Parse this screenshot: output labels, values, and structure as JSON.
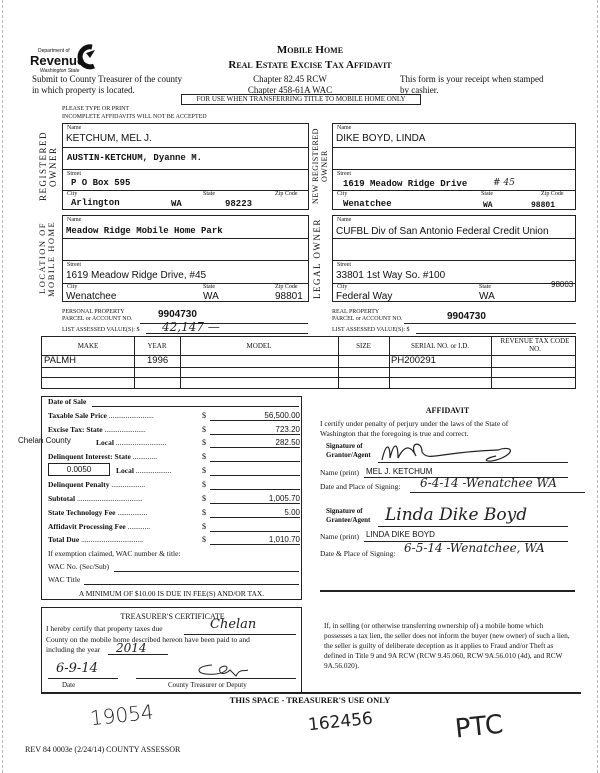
{
  "header": {
    "agency_line1": "Department of",
    "agency_line2": "Revenue",
    "agency_line3": "Washington State",
    "title1": "Mobile Home",
    "title2": "Real Estate Excise Tax Affidavit",
    "submit1": "Submit to County Treasurer of the county",
    "submit2": "in which property is located.",
    "chapter1": "Chapter 82.45 RCW",
    "chapter2": "Chapter 458-61A WAC",
    "receipt1": "This form is your receipt when stamped",
    "receipt2": "by cashier.",
    "banner": "FOR USE WHEN TRANSFERRING TITLE TO MOBILE HOME ONLY",
    "instr1": "PLEASE TYPE OR PRINT",
    "instr2": "INCOMPLETE AFFIDAVITS WILL NOT BE ACCEPTED"
  },
  "labels": {
    "name": "Name",
    "street": "Street",
    "city": "City",
    "state": "State",
    "zip": "Zip Code"
  },
  "registered_owner": {
    "section": "REGISTERED OWNER",
    "name1": "KETCHUM, MEL J.",
    "name2": "AUSTIN-KETCHUM, Dyanne M.",
    "street": "P O Box 595",
    "city": "Arlington",
    "state": "WA",
    "zip": "98223"
  },
  "new_owner": {
    "section": "NEW REGISTERED OWNER",
    "name1": "DIKE BOYD, LINDA",
    "name2": "",
    "street": "1619 Meadow Ridge Drive",
    "unit": "# 45",
    "city": "Wenatchee",
    "state": "WA",
    "zip": "98801"
  },
  "location": {
    "section": "LOCATION OF MOBILE HOME",
    "name1": "Meadow Ridge Mobile Home Park",
    "street": "1619 Meadow Ridge Drive, #45",
    "city": "Wenatchee",
    "state": "WA",
    "zip": "98801"
  },
  "legal_owner": {
    "section": "LEGAL OWNER",
    "name1": "CUFBL Div of San Antonio Federal Credit Union",
    "street": "33801 1st Way So. #100",
    "city": "Federal Way",
    "state": "WA",
    "zip": "98003"
  },
  "parcel": {
    "pp_label1": "PERSONAL PROPERTY",
    "pp_label2": "PARCEL or ACCOUNT NO.",
    "pp_value": "9904730",
    "rp_label1": "REAL PROPERTY",
    "rp_label2": "PARCEL or ACCOUNT NO.",
    "rp_value": "9904730",
    "assessed_label": "LIST ASSESSED VALUE(S): $",
    "pp_assessed": "42,147 —",
    "rp_assessed": ""
  },
  "table": {
    "headers": [
      "MAKE",
      "YEAR",
      "MODEL",
      "SIZE",
      "SERIAL NO. or I.D.",
      "REVENUE TAX CODE NO."
    ],
    "rows": [
      [
        "PALMH",
        "1996",
        "",
        "",
        "PH200291",
        ""
      ],
      [
        "",
        "",
        "",
        "",
        "",
        ""
      ],
      [
        "",
        "",
        "",
        "",
        "",
        ""
      ]
    ]
  },
  "tax": {
    "date_of_sale": "Date of Sale",
    "taxable": "Taxable Sale Price",
    "taxable_v": "56,500.00",
    "excise": "Excise Tax:   State",
    "excise_v": "723.20",
    "county": "Chelan County",
    "local": "Local",
    "local_v": "282.50",
    "delinq": "Delinquent Interest:  State",
    "rate": "0.0050",
    "delinq_local": "Local",
    "penalty": "Delinquent Penalty",
    "subtotal": "Subtotal",
    "subtotal_v": "1,005.70",
    "tech": "State Technology Fee",
    "tech_v": "5.00",
    "affidavit_fee": "Affidavit Processing Fee",
    "total": "Total Due",
    "total_v": "1,010.70",
    "exempt": "If exemption claimed, WAC number & title:",
    "wac_no": "WAC No. (Sec/Sub)",
    "wac_title": "WAC Title",
    "minimum": "A MINIMUM OF $10.00 IS DUE IN FEE(S) AND/OR TAX.",
    "dollar": "$"
  },
  "affidavit": {
    "title": "AFFIDAVIT",
    "cert1": "I certify under penalty of perjury under the laws of the State of",
    "cert2": "Washington that the foregoing is true and correct.",
    "sig_grantor1": "Signature of",
    "sig_grantor2": "Grantor/Agent",
    "name_print": "Name (print)",
    "grantor_name": "MEL J. KETCHUM",
    "date_place": "Date and Place of Signing:",
    "grantor_date": "6-4-14  -Wenatchee WA",
    "sig_grantee1": "Signature of",
    "sig_grantee2": "Grantee/Agent",
    "grantee_sig": "Linda Dike Boyd",
    "grantee_name": "LINDA DIKE BOYD",
    "date_place2": "Date & Place of Signing:",
    "grantee_date": "6-5-14 -Wenatchee, WA"
  },
  "treasurer": {
    "title": "TREASURER'S CERTIFICATE",
    "line1": "I hereby certify that property taxes due",
    "county": "Chelan",
    "line2": "County on the mobile home described hereon have been paid to and",
    "line3": "including the year",
    "year": "2014",
    "date": "6-9-14",
    "date_label": "Date",
    "deputy_label": "County Treasurer or Deputy"
  },
  "notice": "If, in selling (or otherwise transferring ownership of) a mobile home which possesses a tax lien, the seller does not inform the buyer (new owner) of such a lien, the seller is guilty of deliberate deception as it applies to Fraud and/or Theft as defined in Title 9 and 9A RCW (RCW 9.45.060, RCW 9A.56.010 (4d), and RCW 9A.56.020).",
  "footer": {
    "treasurer_use": "THIS SPACE - TREASURER'S USE ONLY",
    "hand1": "19054",
    "hand2": "162456",
    "hand3": "PTC",
    "form_id": "REV 84 0003e (2/24/14) COUNTY ASSESSOR"
  }
}
